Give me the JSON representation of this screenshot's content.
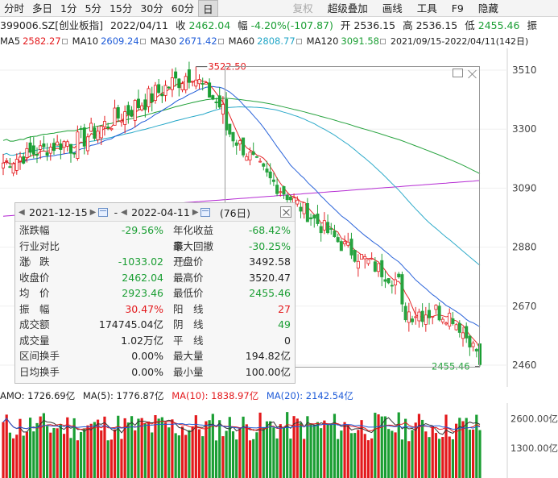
{
  "toolbar": {
    "items": [
      "分时",
      "多日",
      "1分",
      "5分",
      "15分",
      "30分",
      "60分",
      "日"
    ],
    "active": "日",
    "right_items": [
      "复权",
      "超级叠加",
      "画线",
      "工具",
      "F9",
      "隐藏"
    ]
  },
  "info": {
    "symbol": "399006.SZ[创业板指]",
    "date": "2022/04/11",
    "close_label": "收",
    "close": "2462.04",
    "change_label": "幅",
    "change": "-4.20%(-107.87)",
    "open_label": "开",
    "open": "2536.15",
    "high_label": "高",
    "high": "2536.15",
    "low_label": "低",
    "low": "2455.46",
    "extra": "振"
  },
  "ma_row": {
    "items": [
      {
        "label": "MA5",
        "value": "2582.27",
        "color": "#e3191c"
      },
      {
        "label": "MA10",
        "value": "2609.24",
        "color": "#1e5bd8"
      },
      {
        "label": "MA30",
        "value": "2671.42",
        "color": "#1e5bd8"
      },
      {
        "label": "MA60",
        "value": "2808.77",
        "color": "#22a6c7"
      },
      {
        "label": "MA120",
        "value": "3091.58",
        "color": "#1a9e33"
      }
    ],
    "range_text": "2021/09/15-2022/04/11(142日)"
  },
  "chart": {
    "y_ticks": [
      "3510",
      "3300",
      "3090",
      "2880",
      "2670",
      "2460"
    ],
    "high_marker": "3522.50",
    "low_marker": "2455.46",
    "colors": {
      "up": "#e3191c",
      "down": "#1a9e33",
      "ma5": "#e3191c",
      "ma10": "#1e5bd8",
      "ma20": "#1e5bd8",
      "ma60": "#22a6c7",
      "ma120": "#1a9e33",
      "ma250": "#b11fd1"
    }
  },
  "stats": {
    "start_date": "2021-12-15",
    "end_date": "2022-04-11",
    "dash": "-",
    "days": "(76日)",
    "rows": [
      {
        "l": "涨跌幅",
        "lv": "-29.56%",
        "lc": "green",
        "r": "年化收益率",
        "rv": "-68.42%",
        "rc": "green"
      },
      {
        "l": "行业对比",
        "lv": "",
        "lc": "",
        "r": "最大回撤",
        "rv": "-30.25%",
        "rc": "green",
        "lq": true,
        "rq": true
      },
      {
        "l": "涨　跌",
        "lv": "-1033.02",
        "lc": "green",
        "r": "开盘价",
        "rv": "3492.58",
        "rc": ""
      },
      {
        "l": "收盘价",
        "lv": "2462.04",
        "lc": "green",
        "r": "最高价",
        "rv": "3520.47",
        "rc": ""
      },
      {
        "l": "均　价",
        "lv": "2923.46",
        "lc": "green",
        "r": "最低价",
        "rv": "2455.46",
        "rc": "green"
      },
      {
        "l": "振　幅",
        "lv": "30.47%",
        "lc": "red",
        "r": "阳　线",
        "rv": "27",
        "rc": "red"
      },
      {
        "l": "成交额",
        "lv": "174745.04亿",
        "lc": "",
        "r": "阴　线",
        "rv": "49",
        "rc": "green"
      },
      {
        "l": "成交量",
        "lv": "1.02万亿",
        "lc": "",
        "r": "平　线",
        "rv": "0",
        "rc": ""
      },
      {
        "l": "区间换手",
        "lv": "0.00%",
        "lc": "",
        "r": "最大量",
        "rv": "194.82亿",
        "rc": ""
      },
      {
        "l": "日均换手",
        "lv": "0.00%",
        "lc": "",
        "r": "最小量",
        "rv": "100.00亿",
        "rc": ""
      }
    ]
  },
  "volume": {
    "amo": "AMO: 1726.69亿",
    "ma5": "MA(5): 1776.87亿",
    "ma10": "MA(10): 1838.97亿",
    "ma20": "MA(20): 2142.54亿",
    "y_ticks": [
      "2600.00亿",
      "1300.00亿"
    ]
  }
}
